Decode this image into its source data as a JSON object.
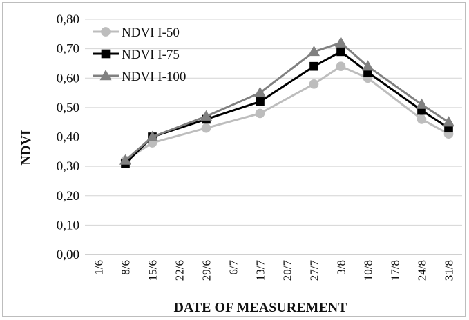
{
  "chart_data": {
    "type": "line",
    "title": "",
    "xlabel": "DATE OF MEASUREMENT",
    "ylabel": "NDVI",
    "x_ticks": [
      "1/6",
      "8/6",
      "15/6",
      "22/6",
      "29/6",
      "6/7",
      "13/7",
      "20/7",
      "27/7",
      "3/8",
      "10/8",
      "17/8",
      "24/8",
      "31/8"
    ],
    "ylim": [
      0,
      0.8
    ],
    "y_ticks": [
      "0,00",
      "0,10",
      "0,20",
      "0,30",
      "0,40",
      "0,50",
      "0,60",
      "0,70",
      "0,80"
    ],
    "grid": "horizontal",
    "legend_position": "top-left",
    "series": [
      {
        "name": "NDVI I-50",
        "color": "#bdbdbd",
        "marker": "circle",
        "points": [
          {
            "x": "8/6",
            "y": 0.32
          },
          {
            "x": "15/6",
            "y": 0.38
          },
          {
            "x": "29/6",
            "y": 0.43
          },
          {
            "x": "13/7",
            "y": 0.48
          },
          {
            "x": "27/7",
            "y": 0.58
          },
          {
            "x": "3/8",
            "y": 0.64
          },
          {
            "x": "10/8",
            "y": 0.6
          },
          {
            "x": "24/8",
            "y": 0.46
          },
          {
            "x": "31/8",
            "y": 0.41
          }
        ]
      },
      {
        "name": "NDVI I-75",
        "color": "#000000",
        "marker": "square",
        "points": [
          {
            "x": "8/6",
            "y": 0.31
          },
          {
            "x": "15/6",
            "y": 0.4
          },
          {
            "x": "29/6",
            "y": 0.46
          },
          {
            "x": "13/7",
            "y": 0.52
          },
          {
            "x": "27/7",
            "y": 0.64
          },
          {
            "x": "3/8",
            "y": 0.69
          },
          {
            "x": "10/8",
            "y": 0.62
          },
          {
            "x": "24/8",
            "y": 0.49
          },
          {
            "x": "31/8",
            "y": 0.43
          }
        ]
      },
      {
        "name": "NDVI I-100",
        "color": "#808080",
        "marker": "triangle",
        "points": [
          {
            "x": "8/6",
            "y": 0.32
          },
          {
            "x": "15/6",
            "y": 0.4
          },
          {
            "x": "29/6",
            "y": 0.47
          },
          {
            "x": "13/7",
            "y": 0.55
          },
          {
            "x": "27/7",
            "y": 0.69
          },
          {
            "x": "3/8",
            "y": 0.72
          },
          {
            "x": "10/8",
            "y": 0.64
          },
          {
            "x": "24/8",
            "y": 0.51
          },
          {
            "x": "31/8",
            "y": 0.45
          }
        ]
      }
    ]
  }
}
